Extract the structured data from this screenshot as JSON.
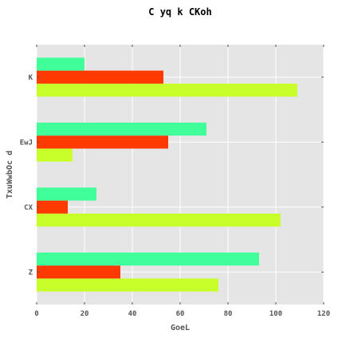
{
  "chart_data": {
    "type": "bar",
    "orientation": "horizontal",
    "title": "C yq k CKoh",
    "xlabel": "GoeL",
    "ylabel": "TxuWwbOc d",
    "categories": [
      "Z",
      "CX",
      "EwJ",
      "K"
    ],
    "series": [
      {
        "color": "#c8ff2a",
        "values": [
          76,
          102,
          15,
          109
        ]
      },
      {
        "color": "#ff3a00",
        "values": [
          35,
          13,
          55,
          53
        ]
      },
      {
        "color": "#40ff9a",
        "values": [
          93,
          25,
          71,
          20
        ]
      }
    ],
    "xlim": [
      0,
      120
    ],
    "xticks": [
      0,
      20,
      40,
      60,
      80,
      100,
      120
    ],
    "grid": true,
    "legend": "none",
    "background": "#e5e5e5",
    "gridline_color": "#ffffff"
  }
}
